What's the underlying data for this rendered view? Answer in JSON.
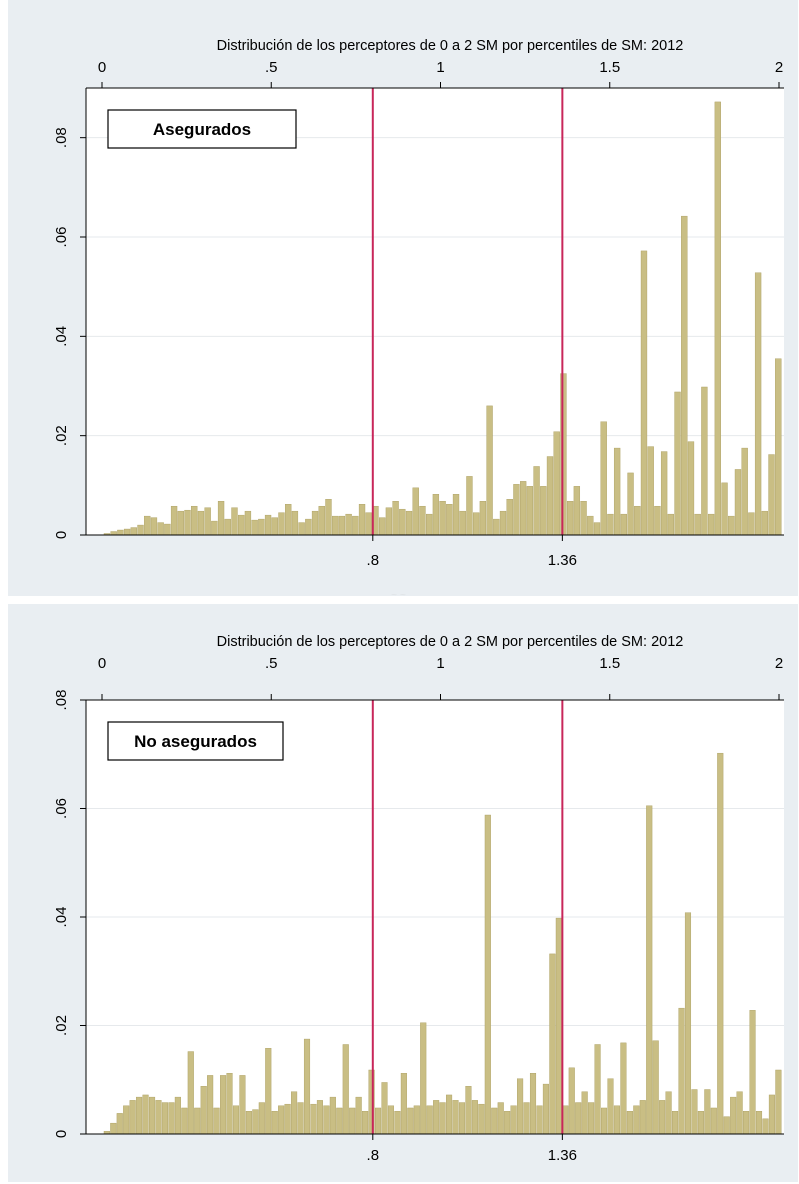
{
  "colors": {
    "panel_background": "#e9eef2",
    "plot_background": "#ffffff",
    "bar_fill": "#c9be84",
    "bar_stroke": "#a89b5c",
    "reference_line": "#c8265a",
    "gridline": "#e6e9ec"
  },
  "chart_data": [
    {
      "type": "bar",
      "title": "Distribución de los perceptores de 0 a 2 SM por percentiles de SM: 2012",
      "legend_box": "Asegurados",
      "x_top_range": [
        0,
        2
      ],
      "x_top_ticks": [
        "0",
        ".5",
        "1",
        "1.5",
        "2"
      ],
      "x_bottom_ticks": [
        ".8",
        "1.36"
      ],
      "reference_lines": [
        0.8,
        1.36
      ],
      "y_ticks": [
        "0",
        ".02",
        ".04",
        ".06",
        ".08"
      ],
      "ylim": [
        0,
        0.09
      ],
      "grid": true,
      "values": [
        0.0003,
        0.0007,
        0.001,
        0.0012,
        0.0015,
        0.002,
        0.0038,
        0.0035,
        0.0025,
        0.0022,
        0.0058,
        0.0048,
        0.005,
        0.0058,
        0.0048,
        0.0055,
        0.0028,
        0.0068,
        0.0032,
        0.0055,
        0.004,
        0.0048,
        0.003,
        0.0032,
        0.004,
        0.0035,
        0.0045,
        0.0062,
        0.0048,
        0.0025,
        0.0032,
        0.0048,
        0.0058,
        0.0072,
        0.0038,
        0.0038,
        0.0042,
        0.0038,
        0.0062,
        0.0045,
        0.0058,
        0.0035,
        0.0055,
        0.0068,
        0.0052,
        0.0048,
        0.0095,
        0.0058,
        0.0042,
        0.0082,
        0.0068,
        0.0062,
        0.0082,
        0.0048,
        0.0118,
        0.0045,
        0.0068,
        0.026,
        0.0032,
        0.0048,
        0.0072,
        0.0102,
        0.0108,
        0.0098,
        0.0138,
        0.0098,
        0.0158,
        0.0208,
        0.0325,
        0.0068,
        0.0098,
        0.0068,
        0.0038,
        0.0025,
        0.0228,
        0.0042,
        0.0175,
        0.0042,
        0.0125,
        0.0058,
        0.0572,
        0.0178,
        0.0058,
        0.0168,
        0.0042,
        0.0288,
        0.0642,
        0.0188,
        0.0042,
        0.0298,
        0.0042,
        0.0872,
        0.0105,
        0.0038,
        0.0132,
        0.0175,
        0.0045,
        0.0528,
        0.0048,
        0.0162,
        0.0355
      ]
    },
    {
      "type": "bar",
      "title": "Distribución de los perceptores de 0 a 2 SM por percentiles de SM: 2012",
      "legend_box": "No asegurados",
      "x_top_range": [
        0,
        2
      ],
      "x_top_ticks": [
        "0",
        ".5",
        "1",
        "1.5",
        "2"
      ],
      "x_bottom_ticks": [
        ".8",
        "1.36"
      ],
      "reference_lines": [
        0.8,
        1.36
      ],
      "y_ticks": [
        "0",
        ".02",
        ".04",
        ".06",
        ".08"
      ],
      "ylim": [
        0,
        0.08
      ],
      "grid": true,
      "values": [
        0.0005,
        0.002,
        0.0038,
        0.0052,
        0.0062,
        0.0068,
        0.0072,
        0.0068,
        0.0062,
        0.0058,
        0.0058,
        0.0068,
        0.0048,
        0.0152,
        0.0048,
        0.0088,
        0.0108,
        0.0048,
        0.0108,
        0.0112,
        0.0052,
        0.0108,
        0.0042,
        0.0045,
        0.0058,
        0.0158,
        0.0042,
        0.0052,
        0.0055,
        0.0078,
        0.0058,
        0.0175,
        0.0055,
        0.0062,
        0.0052,
        0.0068,
        0.0048,
        0.0165,
        0.0048,
        0.0068,
        0.0042,
        0.0118,
        0.0048,
        0.0095,
        0.0052,
        0.0042,
        0.0112,
        0.0048,
        0.0052,
        0.0205,
        0.0052,
        0.0062,
        0.0058,
        0.0072,
        0.0062,
        0.0058,
        0.0088,
        0.0062,
        0.0055,
        0.0588,
        0.0048,
        0.0058,
        0.0042,
        0.0052,
        0.0102,
        0.0058,
        0.0112,
        0.0052,
        0.0092,
        0.0332,
        0.0398,
        0.0052,
        0.0122,
        0.0058,
        0.0078,
        0.0058,
        0.0165,
        0.0048,
        0.0102,
        0.0052,
        0.0168,
        0.0042,
        0.0052,
        0.0062,
        0.0605,
        0.0172,
        0.0062,
        0.0078,
        0.0042,
        0.0232,
        0.0408,
        0.0082,
        0.0042,
        0.0082,
        0.0048,
        0.0702,
        0.0032,
        0.0068,
        0.0078,
        0.0042,
        0.0228,
        0.0042,
        0.0028,
        0.0072,
        0.0118
      ]
    }
  ]
}
